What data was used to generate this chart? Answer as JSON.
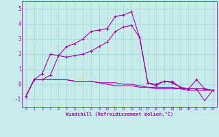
{
  "xlabel": "Windchill (Refroidissement éolien,°C)",
  "background_color": "#c8ecec",
  "grid_color": "#aadddd",
  "line_color": "#aa00aa",
  "xlim": [
    -0.5,
    23.5
  ],
  "ylim": [
    -1.5,
    5.5
  ],
  "yticks": [
    -1,
    0,
    1,
    2,
    3,
    4,
    5
  ],
  "xticks": [
    0,
    1,
    2,
    3,
    4,
    5,
    6,
    7,
    8,
    9,
    10,
    11,
    12,
    13,
    14,
    15,
    16,
    17,
    18,
    19,
    20,
    21,
    22,
    23
  ],
  "series": [
    {
      "x": [
        0,
        1,
        2,
        3,
        4,
        5,
        6,
        7,
        8,
        9,
        10,
        11,
        12,
        13,
        14,
        15,
        16,
        17,
        18,
        19,
        20,
        21,
        22,
        23
      ],
      "y": [
        -0.8,
        0.3,
        0.7,
        2.0,
        1.9,
        2.5,
        2.7,
        3.0,
        3.5,
        3.6,
        3.7,
        4.5,
        4.6,
        4.8,
        3.1,
        0.1,
        -0.1,
        0.2,
        0.2,
        -0.2,
        -0.3,
        0.3,
        -0.3,
        -0.4
      ],
      "marker": "+"
    },
    {
      "x": [
        0,
        1,
        2,
        3,
        4,
        5,
        6,
        7,
        8,
        9,
        10,
        11,
        12,
        13,
        14,
        15,
        16,
        17,
        18,
        19,
        20,
        21,
        22,
        23
      ],
      "y": [
        -0.8,
        0.3,
        0.3,
        0.6,
        1.9,
        1.8,
        1.9,
        2.0,
        2.2,
        2.5,
        2.8,
        3.5,
        3.8,
        3.9,
        3.1,
        0.1,
        0.0,
        0.2,
        0.1,
        -0.2,
        -0.3,
        -0.3,
        -0.3,
        -0.4
      ],
      "marker": "+"
    },
    {
      "x": [
        0,
        1,
        2,
        3,
        4,
        5,
        6,
        7,
        8,
        9,
        10,
        11,
        12,
        13,
        14,
        15,
        16,
        17,
        18,
        19,
        20,
        21,
        22,
        23
      ],
      "y": [
        -0.8,
        0.3,
        0.3,
        0.3,
        0.3,
        0.3,
        0.2,
        0.2,
        0.2,
        0.1,
        0.1,
        0.1,
        0.0,
        0.0,
        -0.1,
        -0.2,
        -0.2,
        -0.2,
        -0.2,
        -0.3,
        -0.3,
        -0.3,
        -1.1,
        -0.4
      ],
      "marker": null
    },
    {
      "x": [
        0,
        1,
        2,
        3,
        4,
        5,
        6,
        7,
        8,
        9,
        10,
        11,
        12,
        13,
        14,
        15,
        16,
        17,
        18,
        19,
        20,
        21,
        22,
        23
      ],
      "y": [
        -0.8,
        0.3,
        0.3,
        0.3,
        0.3,
        0.3,
        0.2,
        0.2,
        0.2,
        0.1,
        0.0,
        -0.1,
        -0.1,
        -0.1,
        -0.2,
        -0.2,
        -0.3,
        -0.3,
        -0.3,
        -0.3,
        -0.4,
        -0.4,
        -0.4,
        -0.4
      ],
      "marker": null
    }
  ]
}
